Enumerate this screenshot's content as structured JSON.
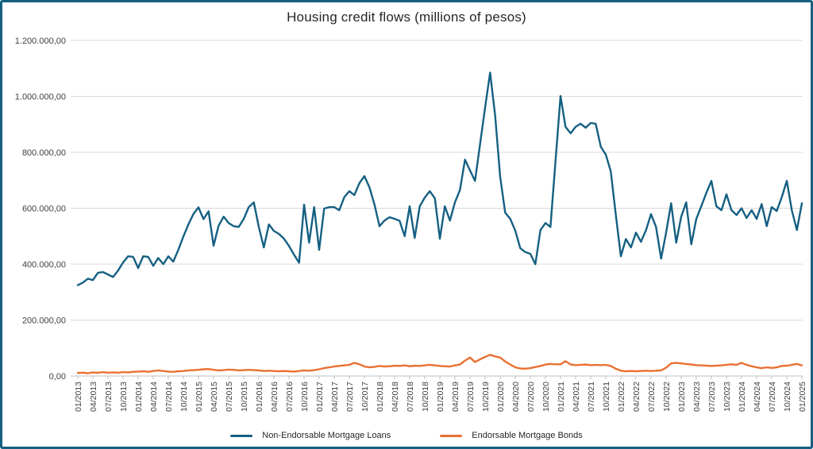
{
  "chart_data": {
    "type": "line",
    "title": "Housing credit flows (millions of pesos)",
    "x_frequency": "monthly",
    "x_range": [
      "01/2013",
      "01/2025"
    ],
    "x_tick_labels": [
      "01/2013",
      "04/2013",
      "07/2013",
      "10/2013",
      "01/2014",
      "04/2014",
      "07/2014",
      "10/2014",
      "01/2015",
      "04/2015",
      "07/2015",
      "10/2015",
      "01/2016",
      "04/2016",
      "07/2016",
      "10/2016",
      "01/2017",
      "04/2017",
      "07/2017",
      "10/2017",
      "01/2018",
      "04/2018",
      "07/2018",
      "10/2018",
      "01/2019",
      "04/2019",
      "07/2019",
      "10/2019",
      "01/2020",
      "04/2020",
      "07/2020",
      "10/2020",
      "01/2021",
      "04/2021",
      "07/2021",
      "10/2021",
      "01/2022",
      "04/2022",
      "07/2022",
      "10/2022",
      "01/2023",
      "04/2023",
      "07/2023",
      "10/2023",
      "01/2024",
      "04/2024",
      "07/2024",
      "10/2024",
      "01/2025"
    ],
    "y_axis": {
      "min": 0,
      "max": 1200000,
      "tick_values": [
        0,
        200000,
        400000,
        600000,
        800000,
        1000000,
        1200000
      ],
      "tick_labels": [
        "0,00",
        "200.000,00",
        "400.000,00",
        "600.000,00",
        "800.000,00",
        "1.000.000,00",
        "1.200.000,00"
      ]
    },
    "grid": "horizontal",
    "legend_position": "bottom",
    "series": [
      {
        "name": "Non-Endorsable Mortgage Loans",
        "color": "#156082",
        "values": [
          325000,
          334000,
          348000,
          343000,
          369000,
          372000,
          363000,
          354000,
          377000,
          406000,
          428000,
          426000,
          386000,
          428000,
          426000,
          394000,
          422000,
          400000,
          428000,
          409000,
          452000,
          499000,
          542000,
          580000,
          603000,
          561000,
          589000,
          466000,
          537000,
          570000,
          547000,
          536000,
          533000,
          562000,
          604000,
          621000,
          533000,
          460000,
          542000,
          519000,
          508000,
          491000,
          465000,
          434000,
          405000,
          613000,
          477000,
          604000,
          451000,
          599000,
          604000,
          604000,
          593000,
          640000,
          661000,
          647000,
          690000,
          715000,
          675000,
          613000,
          536000,
          556000,
          568000,
          562000,
          555000,
          500000,
          607000,
          494000,
          607000,
          638000,
          661000,
          636000,
          491000,
          607000,
          556000,
          621000,
          665000,
          774000,
          735000,
          698000,
          830000,
          960000,
          1085000,
          930000,
          712000,
          584000,
          562000,
          520000,
          457000,
          443000,
          437000,
          400000,
          522000,
          547000,
          533000,
          769000,
          1001000,
          891000,
          868000,
          891000,
          902000,
          888000,
          905000,
          902000,
          820000,
          792000,
          732000,
          575000,
          428000,
          490000,
          460000,
          513000,
          480000,
          522000,
          579000,
          533000,
          420000,
          513000,
          618000,
          477000,
          570000,
          621000,
          471000,
          562000,
          607000,
          655000,
          698000,
          607000,
          593000,
          650000,
          593000,
          576000,
          600000,
          565000,
          593000,
          562000,
          615000,
          536000,
          604000,
          590000,
          640000,
          698000,
          593000,
          522000,
          618000
        ]
      },
      {
        "name": "Endorsable Mortgage Bonds",
        "color": "#E97132",
        "values": [
          11000,
          12000,
          10000,
          13000,
          12000,
          14000,
          12000,
          13000,
          12000,
          14000,
          13000,
          15000,
          16000,
          17000,
          15000,
          18000,
          20000,
          18000,
          16000,
          15000,
          17000,
          18000,
          20000,
          21000,
          22000,
          24000,
          25000,
          22000,
          20000,
          21000,
          23000,
          22000,
          20000,
          21000,
          22000,
          21000,
          20000,
          18000,
          19000,
          18000,
          17000,
          18000,
          17000,
          16000,
          18000,
          20000,
          19000,
          21000,
          24000,
          28000,
          31000,
          34000,
          36000,
          38000,
          40000,
          47000,
          42000,
          34000,
          31000,
          33000,
          36000,
          34000,
          35000,
          37000,
          36000,
          38000,
          35000,
          37000,
          36000,
          38000,
          40000,
          38000,
          36000,
          35000,
          34000,
          38000,
          41000,
          55000,
          66000,
          50000,
          60000,
          68000,
          76000,
          70000,
          66000,
          52000,
          41000,
          31000,
          27000,
          26000,
          28000,
          32000,
          36000,
          41000,
          43000,
          42000,
          42000,
          53000,
          41000,
          39000,
          40000,
          41000,
          39000,
          40000,
          39000,
          40000,
          36000,
          26000,
          19000,
          17000,
          18000,
          17000,
          18000,
          19000,
          18000,
          19000,
          20000,
          30000,
          45000,
          47000,
          45000,
          43000,
          41000,
          39000,
          38000,
          37000,
          36000,
          37000,
          38000,
          40000,
          42000,
          40000,
          47000,
          40000,
          35000,
          31000,
          28000,
          31000,
          29000,
          31000,
          36000,
          37000,
          40000,
          43000,
          38000
        ]
      }
    ],
    "colors": {
      "frame_border": "#156082",
      "gridline": "#D9D9D9",
      "axis_line": "#BFBFBF",
      "tick_label": "#404040",
      "title": "#262626"
    }
  }
}
